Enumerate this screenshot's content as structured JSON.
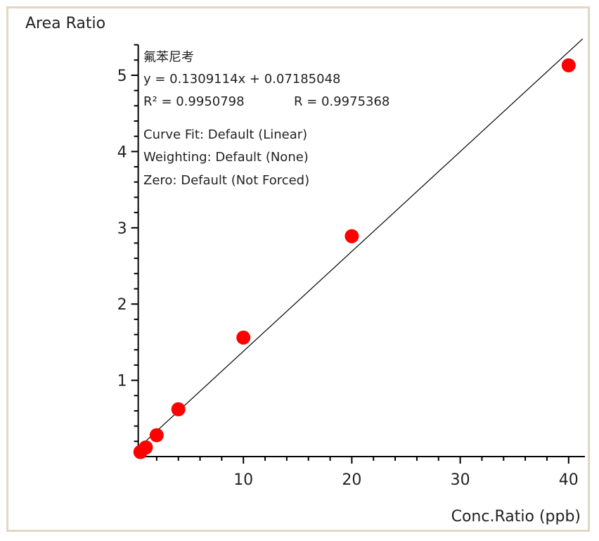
{
  "chart_data": {
    "type": "scatter",
    "title": "",
    "xlabel": "Conc.Ratio (ppb)",
    "ylabel": "Area Ratio",
    "xlim": [
      0.3,
      41.5
    ],
    "ylim": [
      0,
      5.4
    ],
    "xticks": [
      10,
      20,
      30,
      40
    ],
    "yticks": [
      1,
      2,
      3,
      4,
      5
    ],
    "grid": false,
    "series": [
      {
        "name": "氟苯尼考",
        "color": "#ff0000",
        "x": [
          0.5,
          1,
          2,
          4,
          10,
          20,
          40
        ],
        "y": [
          0.06,
          0.12,
          0.28,
          0.62,
          1.56,
          2.89,
          5.13
        ]
      }
    ],
    "fit": {
      "slope": 0.1309114,
      "intercept": 0.07185048,
      "x_range": [
        0.3,
        41.3
      ],
      "color": "#000000"
    },
    "annotations": {
      "compound": "氟苯尼考",
      "equation": "y = 0.1309114x + 0.07185048",
      "r2": "R² = 0.9950798",
      "r": "R = 0.9975368",
      "curve_fit": "Curve Fit: Default (Linear)",
      "weighting": "Weighting: Default (None)",
      "zero": "Zero: Default (Not Forced)"
    }
  }
}
